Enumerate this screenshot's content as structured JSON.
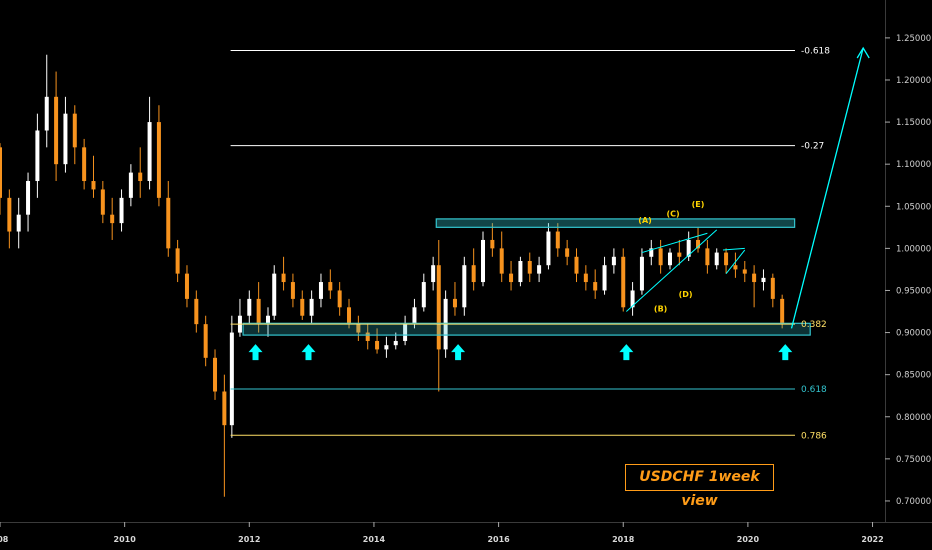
{
  "title": "USDCHF 1week view",
  "colors": {
    "background": "#000000",
    "bull_candle": "#ffffff",
    "bear_candle": "#f7931e",
    "zone": "#33c5cf",
    "arrow": "#00ffff",
    "fib_white": "#ffffff",
    "fib_cyan": "#33c5cf",
    "fib_yellow": "#ffe066",
    "wave_yellow": "#ffd400",
    "title_border": "#ff9c18"
  },
  "chart_data": {
    "type": "candlestick",
    "title": "USDCHF 1week view",
    "xlim": [
      2008,
      2022.2
    ],
    "ylim": [
      0.675,
      1.295
    ],
    "x_ticks": [
      "008",
      "2010",
      "2012",
      "2014",
      "2016",
      "2018",
      "2020",
      "2022",
      "202"
    ],
    "y_ticks": [
      "0.70000",
      "0.75000",
      "0.80000",
      "0.85000",
      "0.90000",
      "0.95000",
      "1.00000",
      "1.05000",
      "1.10000",
      "1.15000",
      "1.20000",
      "1.25000"
    ],
    "candles": [
      [
        2008.0,
        1.12,
        1.125,
        1.04,
        1.06
      ],
      [
        2008.15,
        1.06,
        1.07,
        1.0,
        1.02
      ],
      [
        2008.3,
        1.02,
        1.06,
        1.0,
        1.04
      ],
      [
        2008.45,
        1.04,
        1.09,
        1.02,
        1.08
      ],
      [
        2008.6,
        1.08,
        1.16,
        1.06,
        1.14
      ],
      [
        2008.75,
        1.14,
        1.23,
        1.12,
        1.18
      ],
      [
        2008.9,
        1.18,
        1.21,
        1.08,
        1.1
      ],
      [
        2009.05,
        1.1,
        1.18,
        1.09,
        1.16
      ],
      [
        2009.2,
        1.16,
        1.17,
        1.1,
        1.12
      ],
      [
        2009.35,
        1.12,
        1.13,
        1.07,
        1.08
      ],
      [
        2009.5,
        1.08,
        1.11,
        1.06,
        1.07
      ],
      [
        2009.65,
        1.07,
        1.08,
        1.03,
        1.04
      ],
      [
        2009.8,
        1.04,
        1.06,
        1.01,
        1.03
      ],
      [
        2009.95,
        1.03,
        1.07,
        1.02,
        1.06
      ],
      [
        2010.1,
        1.06,
        1.1,
        1.05,
        1.09
      ],
      [
        2010.25,
        1.09,
        1.12,
        1.06,
        1.08
      ],
      [
        2010.4,
        1.08,
        1.18,
        1.07,
        1.15
      ],
      [
        2010.55,
        1.15,
        1.17,
        1.05,
        1.06
      ],
      [
        2010.7,
        1.06,
        1.08,
        0.99,
        1.0
      ],
      [
        2010.85,
        1.0,
        1.01,
        0.96,
        0.97
      ],
      [
        2011.0,
        0.97,
        0.98,
        0.93,
        0.94
      ],
      [
        2011.15,
        0.94,
        0.95,
        0.9,
        0.91
      ],
      [
        2011.3,
        0.91,
        0.92,
        0.86,
        0.87
      ],
      [
        2011.45,
        0.87,
        0.88,
        0.82,
        0.83
      ],
      [
        2011.6,
        0.83,
        0.85,
        0.705,
        0.79
      ],
      [
        2011.72,
        0.79,
        0.92,
        0.775,
        0.9
      ],
      [
        2011.85,
        0.9,
        0.94,
        0.895,
        0.92
      ],
      [
        2012.0,
        0.92,
        0.95,
        0.91,
        0.94
      ],
      [
        2012.15,
        0.94,
        0.96,
        0.9,
        0.91
      ],
      [
        2012.3,
        0.91,
        0.93,
        0.895,
        0.92
      ],
      [
        2012.4,
        0.92,
        0.98,
        0.915,
        0.97
      ],
      [
        2012.55,
        0.97,
        0.99,
        0.95,
        0.96
      ],
      [
        2012.7,
        0.96,
        0.97,
        0.93,
        0.94
      ],
      [
        2012.85,
        0.94,
        0.95,
        0.915,
        0.92
      ],
      [
        2013.0,
        0.92,
        0.95,
        0.91,
        0.94
      ],
      [
        2013.15,
        0.94,
        0.97,
        0.93,
        0.96
      ],
      [
        2013.3,
        0.96,
        0.975,
        0.94,
        0.95
      ],
      [
        2013.45,
        0.95,
        0.96,
        0.92,
        0.93
      ],
      [
        2013.6,
        0.93,
        0.94,
        0.905,
        0.91
      ],
      [
        2013.75,
        0.91,
        0.92,
        0.89,
        0.9
      ],
      [
        2013.9,
        0.9,
        0.91,
        0.88,
        0.89
      ],
      [
        2014.05,
        0.89,
        0.905,
        0.875,
        0.88
      ],
      [
        2014.2,
        0.88,
        0.895,
        0.87,
        0.885
      ],
      [
        2014.35,
        0.885,
        0.9,
        0.88,
        0.89
      ],
      [
        2014.5,
        0.89,
        0.92,
        0.885,
        0.91
      ],
      [
        2014.65,
        0.91,
        0.94,
        0.905,
        0.93
      ],
      [
        2014.8,
        0.93,
        0.97,
        0.925,
        0.96
      ],
      [
        2014.95,
        0.96,
        0.99,
        0.95,
        0.98
      ],
      [
        2015.04,
        0.98,
        1.01,
        0.83,
        0.88
      ],
      [
        2015.15,
        0.88,
        0.95,
        0.87,
        0.94
      ],
      [
        2015.3,
        0.94,
        0.96,
        0.92,
        0.93
      ],
      [
        2015.45,
        0.93,
        0.99,
        0.92,
        0.98
      ],
      [
        2015.6,
        0.98,
        1.0,
        0.95,
        0.96
      ],
      [
        2015.75,
        0.96,
        1.02,
        0.955,
        1.01
      ],
      [
        2015.9,
        1.01,
        1.03,
        0.99,
        1.0
      ],
      [
        2016.05,
        1.0,
        1.02,
        0.96,
        0.97
      ],
      [
        2016.2,
        0.97,
        0.985,
        0.95,
        0.96
      ],
      [
        2016.35,
        0.96,
        0.99,
        0.955,
        0.985
      ],
      [
        2016.5,
        0.985,
        0.995,
        0.96,
        0.97
      ],
      [
        2016.65,
        0.97,
        0.99,
        0.96,
        0.98
      ],
      [
        2016.8,
        0.98,
        1.03,
        0.975,
        1.02
      ],
      [
        2016.95,
        1.02,
        1.03,
        0.99,
        1.0
      ],
      [
        2017.1,
        1.0,
        1.01,
        0.98,
        0.99
      ],
      [
        2017.25,
        0.99,
        1.0,
        0.96,
        0.97
      ],
      [
        2017.4,
        0.97,
        0.98,
        0.95,
        0.96
      ],
      [
        2017.55,
        0.96,
        0.975,
        0.94,
        0.95
      ],
      [
        2017.7,
        0.95,
        0.99,
        0.945,
        0.98
      ],
      [
        2017.85,
        0.98,
        1.0,
        0.97,
        0.99
      ],
      [
        2018.0,
        0.99,
        1.0,
        0.925,
        0.93
      ],
      [
        2018.15,
        0.93,
        0.96,
        0.92,
        0.95
      ],
      [
        2018.3,
        0.95,
        1.0,
        0.945,
        0.99
      ],
      [
        2018.45,
        0.99,
        1.01,
        0.98,
        1.0
      ],
      [
        2018.6,
        1.0,
        1.01,
        0.97,
        0.98
      ],
      [
        2018.75,
        0.98,
        1.0,
        0.975,
        0.995
      ],
      [
        2018.9,
        0.995,
        1.01,
        0.98,
        0.99
      ],
      [
        2019.05,
        0.99,
        1.02,
        0.985,
        1.01
      ],
      [
        2019.2,
        1.01,
        1.025,
        0.995,
        1.0
      ],
      [
        2019.35,
        1.0,
        1.01,
        0.97,
        0.98
      ],
      [
        2019.5,
        0.98,
        1.0,
        0.975,
        0.995
      ],
      [
        2019.65,
        0.995,
        1.0,
        0.97,
        0.98
      ],
      [
        2019.8,
        0.98,
        0.995,
        0.965,
        0.975
      ],
      [
        2019.95,
        0.975,
        0.985,
        0.96,
        0.97
      ],
      [
        2020.1,
        0.97,
        0.98,
        0.93,
        0.96
      ],
      [
        2020.25,
        0.96,
        0.975,
        0.95,
        0.965
      ],
      [
        2020.4,
        0.965,
        0.97,
        0.93,
        0.94
      ],
      [
        2020.55,
        0.94,
        0.945,
        0.905,
        0.91
      ]
    ],
    "resistance_zone": [
      1.025,
      1.035
    ],
    "support_zone": [
      0.897,
      0.911
    ],
    "support_arrows_x": [
      2012.1,
      2012.95,
      2015.35,
      2018.05,
      2020.6
    ],
    "fib_levels": [
      {
        "label": "-0.618",
        "value": 1.235,
        "color": "white"
      },
      {
        "label": "-0.27",
        "value": 1.122,
        "color": "white"
      },
      {
        "label": "0.382",
        "value": 0.91,
        "color": "yellow"
      },
      {
        "label": "0.618",
        "value": 0.833,
        "color": "cyan"
      },
      {
        "label": "0.786",
        "value": 0.778,
        "color": "yellow"
      }
    ],
    "projection": {
      "from": [
        2020.7,
        0.905
      ],
      "to": [
        2021.85,
        1.238
      ]
    },
    "wave_labels": [
      {
        "label": "(A)",
        "x": 2018.35,
        "y": 1.03
      },
      {
        "label": "(B)",
        "x": 2018.6,
        "y": 0.925
      },
      {
        "label": "(C)",
        "x": 2018.8,
        "y": 1.038
      },
      {
        "label": "(D)",
        "x": 2019.0,
        "y": 0.942
      },
      {
        "label": "(E)",
        "x": 2019.2,
        "y": 1.049
      }
    ],
    "wave_lines": [
      [
        [
          2018.3,
          0.995
        ],
        [
          2019.35,
          1.018
        ]
      ],
      [
        [
          2018.05,
          0.925
        ],
        [
          2019.5,
          1.022
        ]
      ],
      [
        [
          2019.6,
          0.998
        ],
        [
          2019.95,
          1.0
        ]
      ],
      [
        [
          2019.65,
          0.97
        ],
        [
          2019.95,
          0.998
        ]
      ]
    ]
  }
}
